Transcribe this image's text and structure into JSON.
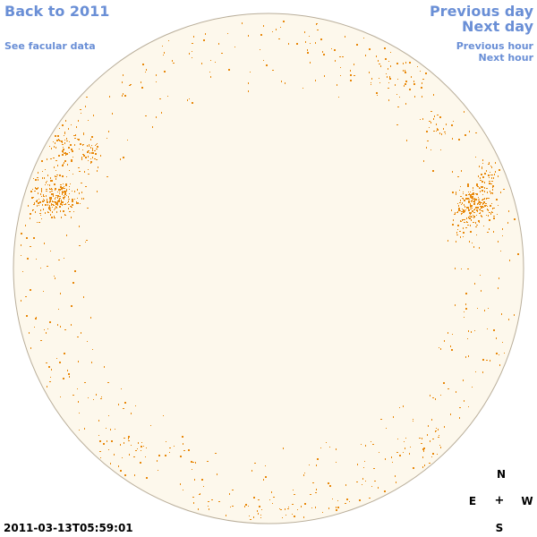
{
  "nav": {
    "back": "Back to 2011",
    "facular": "See facular data",
    "previous_day": "Previous day",
    "next_day": "Next day",
    "previous_hour": "Previous hour",
    "next_hour": "Next hour"
  },
  "timestamp": "2011-03-13T05:59:01",
  "compass": {
    "north": "N",
    "east": "E",
    "center": "+",
    "west": "W",
    "south": "S"
  },
  "colors": {
    "disk_fill": "#fdf8ec",
    "disk_outline": "#b9ae9a",
    "facula": "#e8890c",
    "link": "#6a8fd6"
  }
}
